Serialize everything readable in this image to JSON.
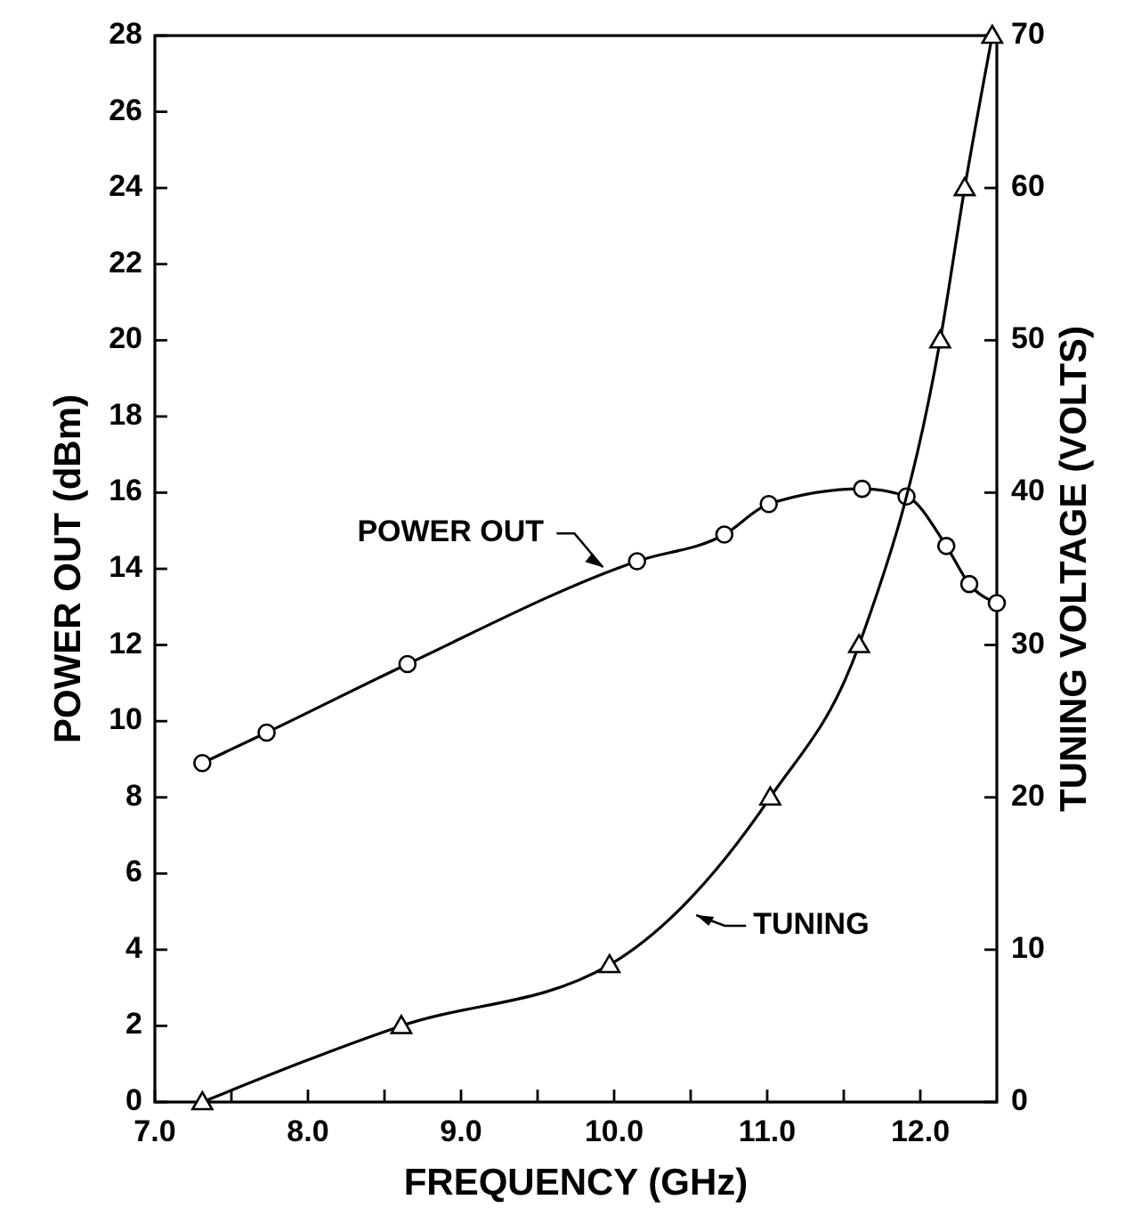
{
  "chart_data": {
    "type": "line",
    "xlabel": "FREQUENCY (GHz)",
    "ylabel": "POWER OUT (dBm)",
    "y2label": "TUNING VOLTAGE (VOLTS)",
    "xlim": [
      7,
      12.5
    ],
    "xticks": [
      {
        "value": 7,
        "label": "7.0"
      },
      {
        "value": 7.5,
        "label": null
      },
      {
        "value": 8,
        "label": "8.0"
      },
      {
        "value": 8.5,
        "label": null
      },
      {
        "value": 9,
        "label": "9.0"
      },
      {
        "value": 9.5,
        "label": null
      },
      {
        "value": 10,
        "label": "10.0"
      },
      {
        "value": 10.5,
        "label": null
      },
      {
        "value": 11,
        "label": "11.0"
      },
      {
        "value": 11.5,
        "label": null
      },
      {
        "value": 12,
        "label": "12.0"
      }
    ],
    "ylim": [
      0,
      28
    ],
    "yticks": [
      0,
      2,
      4,
      6,
      8,
      10,
      12,
      14,
      16,
      18,
      20,
      22,
      24,
      26,
      28
    ],
    "y2lim": [
      0,
      70
    ],
    "y2ticks": [
      0,
      10,
      20,
      30,
      40,
      50,
      60,
      70
    ],
    "grid": false,
    "annotations": [
      {
        "text": "POWER OUT",
        "x": 9.95,
        "y": 13.9
      },
      {
        "text": "TUNING",
        "x": 10.49,
        "y": 5
      }
    ],
    "series": [
      {
        "color": "#000000",
        "marker": "circle",
        "x": [
          7.31,
          7.73,
          8.65,
          10.15,
          10.72,
          11.01,
          11.62,
          11.91,
          12.17,
          12.32,
          12.5
        ],
        "values": [
          8.9,
          9.7,
          11.5,
          14.2,
          14.9,
          15.7,
          16.1,
          15.9,
          14.6,
          13.6,
          13.1
        ]
      },
      {
        "color": "#000000",
        "marker": "triangle",
        "axis": "y2",
        "x": [
          7.31,
          8.61,
          9.97,
          11.02,
          11.6,
          12.13,
          12.29,
          12.47
        ],
        "values": [
          0,
          5,
          9,
          20,
          30,
          50,
          60,
          70
        ]
      }
    ]
  }
}
